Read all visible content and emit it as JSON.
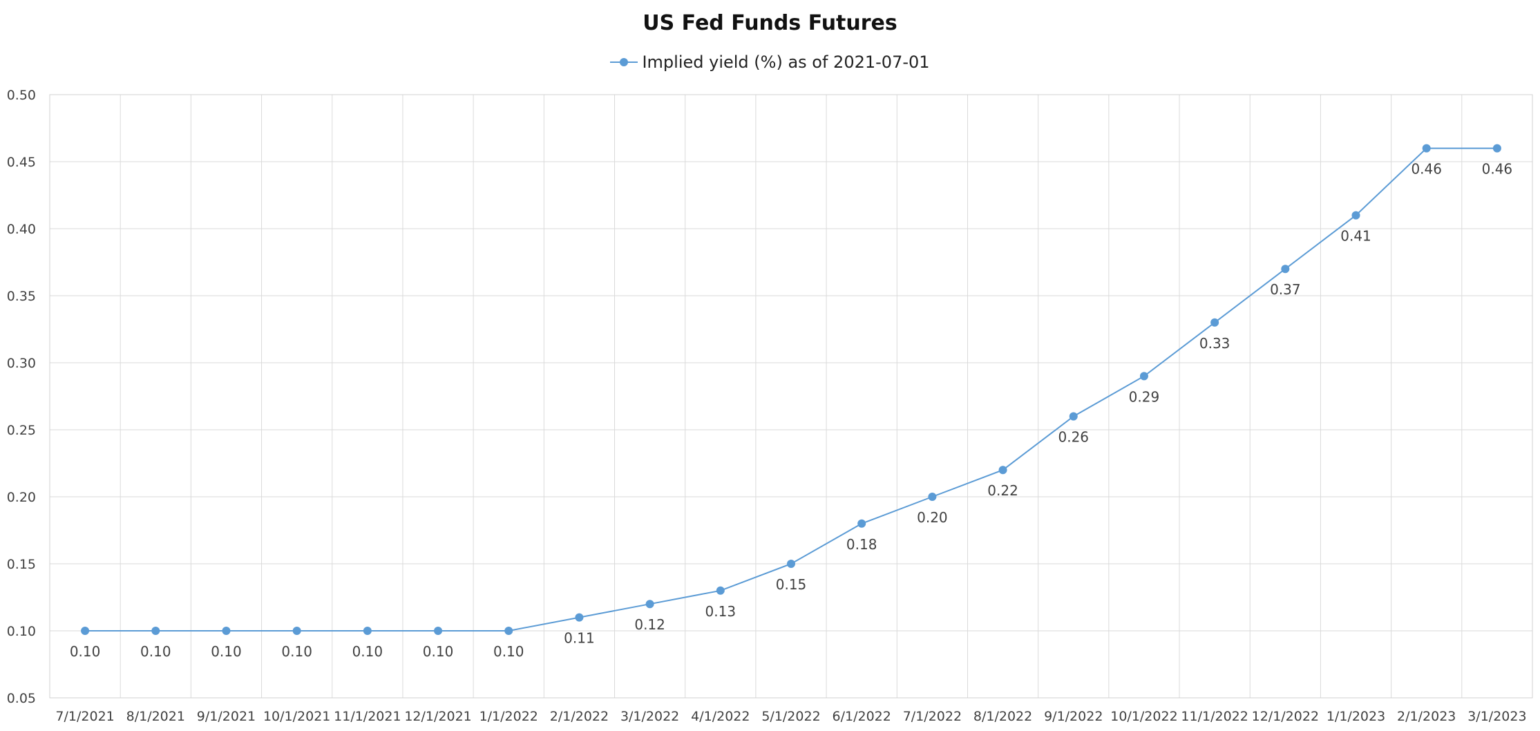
{
  "chart_data": {
    "type": "line",
    "title": "US Fed Funds Futures",
    "xlabel": "",
    "ylabel": "",
    "categories": [
      "7/1/2021",
      "8/1/2021",
      "9/1/2021",
      "10/1/2021",
      "11/1/2021",
      "12/1/2021",
      "1/1/2022",
      "2/1/2022",
      "3/1/2022",
      "4/1/2022",
      "5/1/2022",
      "6/1/2022",
      "7/1/2022",
      "8/1/2022",
      "9/1/2022",
      "10/1/2022",
      "11/1/2022",
      "12/1/2022",
      "1/1/2023",
      "2/1/2023",
      "3/1/2023"
    ],
    "series": [
      {
        "name": "Implied yield (%) as of 2021-07-01",
        "values": [
          0.1,
          0.1,
          0.1,
          0.1,
          0.1,
          0.1,
          0.1,
          0.11,
          0.12,
          0.13,
          0.15,
          0.18,
          0.2,
          0.22,
          0.26,
          0.29,
          0.33,
          0.37,
          0.41,
          0.46,
          0.46
        ],
        "labels": [
          "0.10",
          "0.10",
          "0.10",
          "0.10",
          "0.10",
          "0.10",
          "0.10",
          "0.11",
          "0.12",
          "0.13",
          "0.15",
          "0.18",
          "0.20",
          "0.22",
          "0.26",
          "0.29",
          "0.33",
          "0.37",
          "0.41",
          "0.46",
          "0.46"
        ],
        "color": "#5b9bd5"
      }
    ],
    "ylim": [
      0.05,
      0.5
    ],
    "yticks": [
      "0.05",
      "0.10",
      "0.15",
      "0.20",
      "0.25",
      "0.30",
      "0.35",
      "0.40",
      "0.45",
      "0.50"
    ],
    "grid": true,
    "legend_position": "top-center"
  }
}
